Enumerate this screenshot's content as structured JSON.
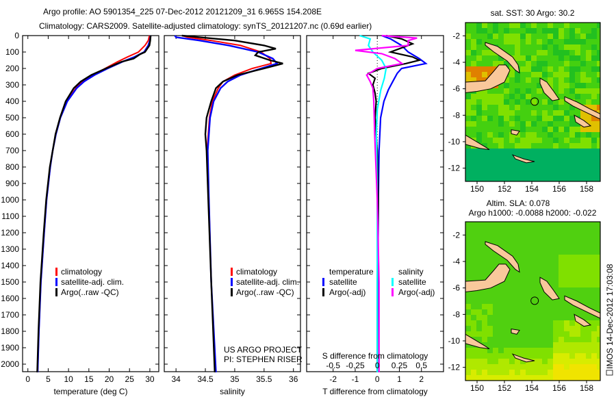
{
  "title": {
    "line1": "Argo profile: AO 5901354_225 07-Dec-2012 20121209_31 6.965S 154.208E",
    "line2": "Climatology: CARS2009. Satellite-adjusted climatology: synTS_20121207.nc (0.69d earlier)"
  },
  "colors": {
    "climatology": "#ff0000",
    "satellite": "#0000ff",
    "argo": "#000000",
    "s_satellite": "#00ffff",
    "s_argo": "#ff00ff",
    "land": "#f9c89b"
  },
  "footer": {
    "imos_stamp": "IMOS 14-Dec-2012 17:03:08"
  },
  "panel_text": {
    "project": "US ARGO PROJECT",
    "pi": "PI: STEPHEN RISER"
  },
  "chart_data": [
    {
      "type": "line",
      "id": "temperature",
      "xlabel": "temperature (deg C)",
      "ylabel": "depth",
      "xlim": [
        -1.3,
        32.2
      ],
      "ylim": [
        2040,
        0
      ],
      "xticks": [
        "0",
        "5",
        "10",
        "15",
        "20",
        "25",
        "30"
      ],
      "yticks": [
        "0",
        "100",
        "200",
        "300",
        "400",
        "500",
        "600",
        "700",
        "800",
        "900",
        "1000",
        "1100",
        "1200",
        "1300",
        "1400",
        "1500",
        "1600",
        "1700",
        "1800",
        "1900",
        "2000"
      ],
      "legend": [
        "climatology",
        "satellite-adj. clim.",
        "Argo(..raw -QC)"
      ],
      "series": [
        {
          "name": "climatology",
          "color": "#ff0000",
          "depth": [
            0,
            30,
            60,
            100,
            130,
            160,
            200,
            240,
            280,
            320,
            400,
            500,
            600,
            700,
            800,
            1000,
            1200,
            1500,
            1800,
            2050
          ],
          "values": [
            29.9,
            29.6,
            28.8,
            27.2,
            24.5,
            22.0,
            19.0,
            16.0,
            13.5,
            11.8,
            9.6,
            8.0,
            6.9,
            6.1,
            5.5,
            4.6,
            4.0,
            3.2,
            2.7,
            2.4
          ]
        },
        {
          "name": "satellite-adj. clim.",
          "color": "#0000ff",
          "depth": [
            0,
            30,
            60,
            100,
            130,
            160,
            200,
            240,
            280,
            320,
            400,
            500,
            600,
            700,
            800,
            1000,
            1200,
            1500,
            1800,
            2050
          ],
          "values": [
            30.2,
            30.0,
            29.6,
            28.6,
            26.2,
            23.2,
            19.6,
            16.4,
            13.8,
            12.0,
            9.7,
            8.0,
            6.9,
            6.1,
            5.5,
            4.6,
            4.0,
            3.2,
            2.7,
            2.4
          ]
        },
        {
          "name": "Argo(..raw -QC)",
          "color": "#000000",
          "depth": [
            0,
            30,
            60,
            100,
            115,
            140,
            160,
            200,
            240,
            280,
            320,
            400,
            500,
            600,
            700,
            800,
            1000,
            1200,
            1500,
            1800,
            2050
          ],
          "values": [
            30.2,
            30.1,
            29.9,
            28.8,
            27.5,
            26.0,
            23.0,
            19.2,
            15.6,
            13.0,
            11.3,
            9.3,
            7.9,
            6.8,
            6.1,
            5.4,
            4.5,
            3.9,
            3.1,
            2.6,
            2.3
          ]
        }
      ]
    },
    {
      "type": "line",
      "id": "salinity",
      "xlabel": "salinity",
      "xlim": [
        33.8,
        36.12
      ],
      "ylim": [
        2040,
        0
      ],
      "xticks": [
        "34",
        "34.5",
        "35",
        "35.5",
        "36"
      ],
      "legend": [
        "climatology",
        "satellite-adj. clim.",
        "Argo(..raw -QC)"
      ],
      "series": [
        {
          "name": "climatology",
          "color": "#ff0000",
          "depth": [
            0,
            10,
            30,
            60,
            100,
            140,
            170,
            200,
            240,
            280,
            320,
            400,
            500,
            700,
            1000,
            1500,
            2050
          ],
          "values": [
            34.1,
            34.2,
            34.6,
            35.1,
            35.45,
            35.6,
            35.62,
            35.3,
            35.0,
            34.8,
            34.72,
            34.62,
            34.57,
            34.53,
            34.56,
            34.6,
            34.67
          ]
        },
        {
          "name": "satellite-adj. clim.",
          "color": "#0000ff",
          "depth": [
            0,
            10,
            30,
            60,
            100,
            140,
            170,
            200,
            240,
            280,
            320,
            400,
            500,
            700,
            1000,
            1500,
            2050
          ],
          "values": [
            33.98,
            34.0,
            34.4,
            34.9,
            35.4,
            35.65,
            35.72,
            35.45,
            35.1,
            34.88,
            34.76,
            34.64,
            34.58,
            34.54,
            34.56,
            34.6,
            34.68
          ]
        },
        {
          "name": "Argo(..raw -QC)",
          "color": "#000000",
          "depth": [
            0,
            10,
            30,
            60,
            80,
            100,
            120,
            150,
            170,
            200,
            240,
            280,
            320,
            400,
            500,
            600,
            700,
            1000,
            1500,
            2050
          ],
          "values": [
            34.1,
            34.4,
            35.0,
            35.5,
            35.7,
            35.4,
            35.35,
            35.6,
            35.82,
            35.5,
            35.05,
            34.8,
            34.68,
            34.6,
            34.52,
            34.5,
            34.52,
            34.55,
            34.6,
            34.66
          ]
        }
      ]
    },
    {
      "type": "line",
      "id": "difference",
      "xlabel": "T difference from climatology",
      "x2label": "S difference from climatology",
      "xlim": [
        -3.2,
        3.0
      ],
      "x2lim": [
        -0.8,
        0.75
      ],
      "xticks": [
        "-2",
        "-1",
        "0",
        "1",
        "2"
      ],
      "x2ticks": [
        "-0.5",
        "-0.25",
        "0",
        "0.25",
        "0.5"
      ],
      "legend_headers": [
        "temperature",
        "salinity"
      ],
      "legend": [
        "satellite",
        "Argo(-adj)",
        "satellite",
        "Argo(-adj)"
      ],
      "series": [
        {
          "name": "T satellite",
          "color": "#0000ff",
          "axis": "T",
          "depth": [
            0,
            20,
            60,
            100,
            140,
            170,
            200,
            230,
            280,
            330,
            400,
            500,
            700,
            1000,
            1500,
            2050
          ],
          "values": [
            0.2,
            0.6,
            1.1,
            1.4,
            1.9,
            2.2,
            1.1,
            0.9,
            0.7,
            0.5,
            0.3,
            0.15,
            0.08,
            0.05,
            0.03,
            0.0
          ]
        },
        {
          "name": "T Argo(-adj)",
          "color": "#000000",
          "axis": "T",
          "depth": [
            0,
            20,
            50,
            80,
            100,
            130,
            150,
            170,
            200,
            230,
            260,
            300,
            350,
            400,
            500,
            700,
            1000,
            1500,
            2050
          ],
          "values": [
            0.4,
            1.1,
            1.6,
            1.0,
            0.6,
            1.6,
            1.9,
            1.3,
            0.2,
            -0.4,
            -0.1,
            -0.2,
            -0.1,
            -0.05,
            -0.1,
            0.0,
            0.05,
            0.0,
            0.0
          ]
        },
        {
          "name": "S satellite",
          "color": "#00ffff",
          "axis": "S",
          "depth": [
            0,
            20,
            60,
            100,
            150,
            200,
            260,
            330,
            450,
            600,
            1000,
            2050
          ],
          "values": [
            -0.2,
            -0.08,
            -0.1,
            -0.05,
            0.05,
            0.1,
            0.08,
            0.04,
            0.0,
            -0.01,
            0.0,
            0.0
          ]
        },
        {
          "name": "S Argo(-adj)",
          "color": "#ff00ff",
          "axis": "S",
          "depth": [
            0,
            15,
            30,
            60,
            90,
            110,
            140,
            170,
            200,
            240,
            280,
            320,
            400,
            600,
            1000,
            1500,
            2050
          ],
          "values": [
            0.05,
            0.45,
            0.35,
            0.35,
            -0.25,
            0.05,
            0.2,
            0.28,
            0.0,
            -0.12,
            -0.08,
            -0.05,
            -0.04,
            -0.03,
            0.0,
            0.02,
            0.02
          ]
        }
      ]
    },
    {
      "type": "heatmap",
      "id": "sst-map",
      "title": "sat. SST: 30 Argo: 30.2",
      "xlim": [
        149.15,
        159.0
      ],
      "ylim": [
        -13,
        -1
      ],
      "xticks": [
        "150",
        "152",
        "154",
        "156",
        "158"
      ],
      "yticks": [
        "-2",
        "-4",
        "-6",
        "-8",
        "-10",
        "-12"
      ],
      "marker": {
        "lon": 154.208,
        "lat": -6.965
      }
    },
    {
      "type": "heatmap",
      "id": "sla-map",
      "title": "Altim. SLA: 0.078",
      "subtitle": "Argo h1000: -0.0088 h2000: -0.022",
      "xlim": [
        149.15,
        159.0
      ],
      "ylim": [
        -13,
        -1
      ],
      "xticks": [
        "150",
        "152",
        "154",
        "156",
        "158"
      ],
      "yticks": [
        "-2",
        "-4",
        "-6",
        "-8",
        "-10",
        "-12"
      ],
      "marker": {
        "lon": 154.208,
        "lat": -6.965
      }
    }
  ]
}
